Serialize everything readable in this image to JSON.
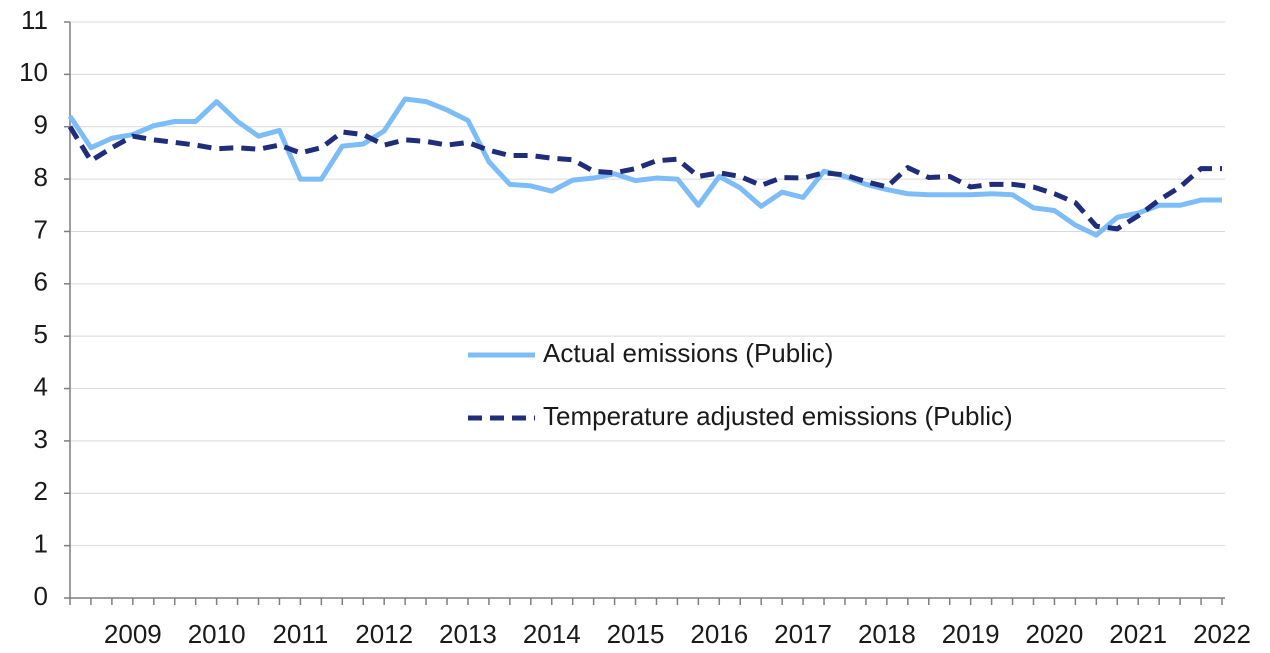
{
  "chart_data": {
    "type": "line",
    "categories": [
      null,
      null,
      null,
      "2009",
      null,
      null,
      null,
      "2010",
      null,
      null,
      null,
      "2011",
      null,
      null,
      null,
      "2012",
      null,
      null,
      null,
      "2013",
      null,
      null,
      null,
      "2014",
      null,
      null,
      null,
      "2015",
      null,
      null,
      null,
      "2016",
      null,
      null,
      null,
      "2017",
      null,
      null,
      null,
      "2018",
      null,
      null,
      null,
      "2019",
      null,
      null,
      null,
      "2020",
      null,
      null,
      null,
      "2021",
      null,
      null,
      null,
      "2022"
    ],
    "series": [
      {
        "name": "Actual emissions (Public)",
        "color": "#7dbdf7",
        "style": "solid",
        "values": [
          9.2,
          8.6,
          8.78,
          8.85,
          9.02,
          9.1,
          9.1,
          9.48,
          9.1,
          8.82,
          8.93,
          8.0,
          8.0,
          8.63,
          8.67,
          8.92,
          9.53,
          9.48,
          9.32,
          9.12,
          8.33,
          7.9,
          7.87,
          7.77,
          7.98,
          8.02,
          8.1,
          7.97,
          8.02,
          8.0,
          7.5,
          8.05,
          7.83,
          7.48,
          7.75,
          7.65,
          8.15,
          8.05,
          7.9,
          7.8,
          7.72,
          7.7,
          7.7,
          7.7,
          7.72,
          7.7,
          7.45,
          7.4,
          7.12,
          6.93,
          7.27,
          7.35,
          7.5,
          7.5,
          7.6,
          7.6
        ]
      },
      {
        "name": "Temperature adjusted emissions (Public)",
        "color": "#1f2d7b",
        "style": "dashed",
        "values": [
          9.0,
          8.35,
          8.6,
          8.82,
          8.75,
          8.7,
          8.65,
          8.58,
          8.6,
          8.57,
          8.65,
          8.5,
          8.6,
          8.9,
          8.85,
          8.65,
          8.75,
          8.72,
          8.65,
          8.7,
          8.55,
          8.45,
          8.45,
          8.4,
          8.37,
          8.15,
          8.12,
          8.2,
          8.35,
          8.38,
          8.05,
          8.12,
          8.05,
          7.88,
          8.03,
          8.02,
          8.12,
          8.08,
          7.95,
          7.85,
          8.22,
          8.03,
          8.05,
          7.85,
          7.9,
          7.9,
          7.85,
          7.72,
          7.55,
          7.1,
          7.05,
          7.3,
          7.6,
          7.85,
          8.2,
          8.2
        ]
      }
    ],
    "ylim": [
      0,
      11
    ],
    "yticks": [
      0,
      1,
      2,
      3,
      4,
      5,
      6,
      7,
      8,
      9,
      10,
      11
    ],
    "grid": true
  }
}
